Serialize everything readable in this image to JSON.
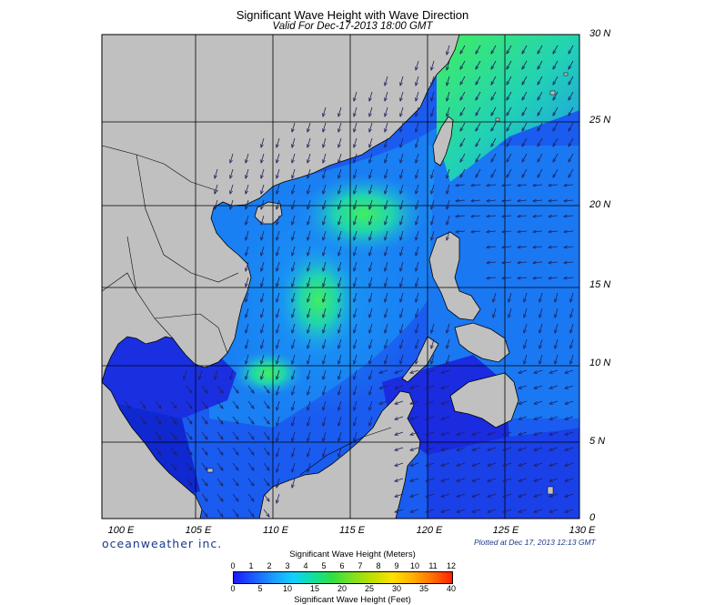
{
  "header": {
    "title": "Significant Wave Height with Wave Direction",
    "subtitle": "Valid For Dec-17-2013 18:00 GMT"
  },
  "map": {
    "lon_labels": [
      "100 E",
      "105 E",
      "110 E",
      "115 E",
      "120 E",
      "125 E",
      "130 E"
    ],
    "lat_labels": [
      "30 N",
      "25 N",
      "20 N",
      "15 N",
      "10 N",
      "5 N",
      "0"
    ],
    "lon_range": [
      99,
      130
    ],
    "lat_range": [
      0,
      30
    ],
    "land_color": "#c0c0c0",
    "ocean_low_color": "#1020d0",
    "ocean_mid_color": "#2080ff",
    "ocean_high_color": "#30e070",
    "arrow_color": "#20205a"
  },
  "footer": {
    "brand": "oceanweather inc.",
    "plotted": "Plotted at Dec 17, 2013 12:13 GMT"
  },
  "colorbar": {
    "title": "Significant Wave Height (Meters)",
    "foot": "Significant Wave Height (Feet)",
    "meters": [
      "0",
      "1",
      "2",
      "3",
      "4",
      "5",
      "6",
      "7",
      "8",
      "9",
      "10",
      "11",
      "12"
    ],
    "feet": [
      "0",
      "5",
      "10",
      "15",
      "20",
      "25",
      "30",
      "35",
      "40"
    ],
    "colors": [
      "#1a1aff",
      "#1a5cff",
      "#1a9cff",
      "#10d0ff",
      "#10e0a0",
      "#30e040",
      "#80e020",
      "#c0e000",
      "#ffe000",
      "#ffb000",
      "#ff7000",
      "#ff2000"
    ]
  }
}
